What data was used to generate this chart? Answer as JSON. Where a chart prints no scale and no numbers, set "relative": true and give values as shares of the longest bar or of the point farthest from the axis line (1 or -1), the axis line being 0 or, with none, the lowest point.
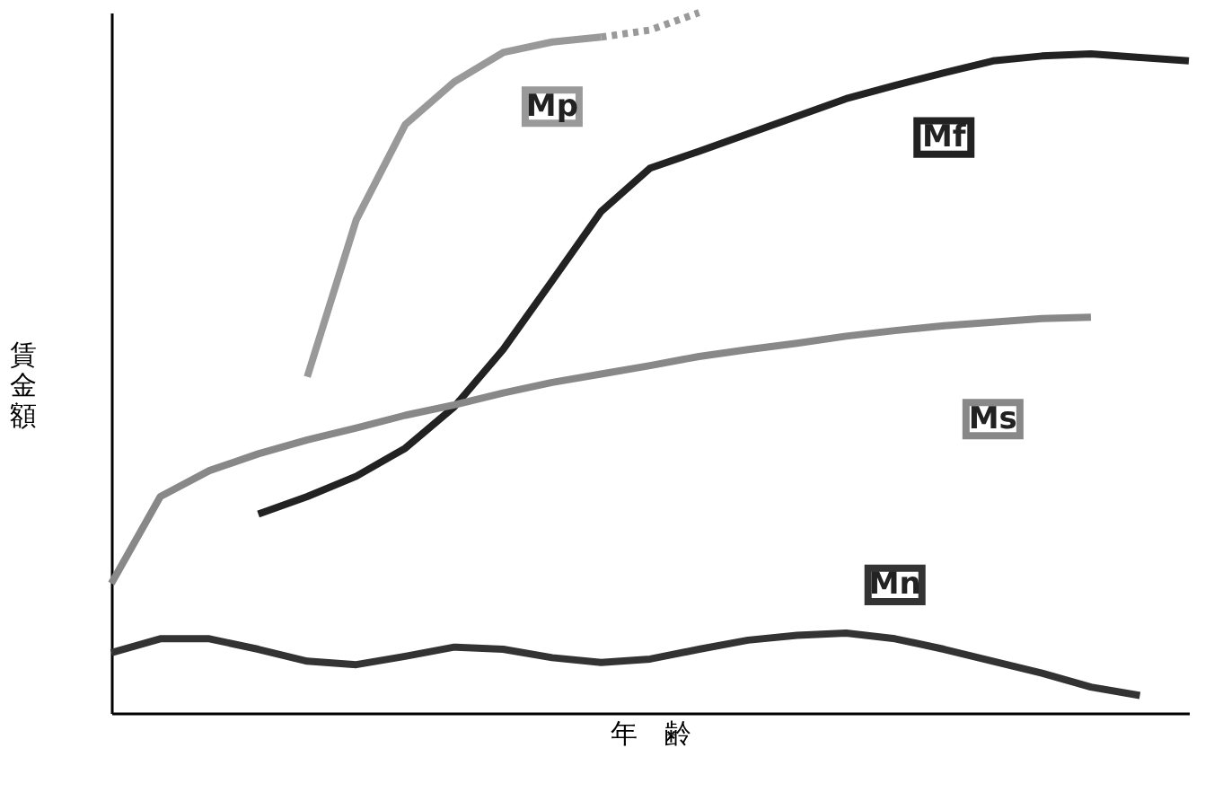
{
  "chart_data": {
    "type": "line",
    "relative": true,
    "xlabel": "年　齢",
    "ylabel": "賃金額",
    "tick_labels": false,
    "categories": [
      null,
      null,
      null,
      null,
      null,
      null,
      null,
      null,
      null,
      null,
      null,
      null,
      null,
      null,
      null,
      null,
      null,
      null,
      null,
      null,
      null,
      null,
      null
    ],
    "series": [
      {
        "name": "Mp",
        "color": "#999999",
        "line_style": "solid",
        "values": [
          null,
          null,
          null,
          null,
          0.48,
          0.704,
          0.84,
          0.901,
          0.943,
          0.958,
          0.965,
          null,
          null,
          null,
          null,
          null,
          null,
          null,
          null,
          null,
          null,
          null,
          null
        ]
      },
      {
        "color": "#999999",
        "line_style": "dotted",
        "values": [
          null,
          null,
          null,
          null,
          null,
          null,
          null,
          null,
          null,
          null,
          0.965,
          0.975,
          1,
          null,
          null,
          null,
          null,
          null,
          null,
          null,
          null,
          null,
          null
        ]
      },
      {
        "name": "Mf",
        "color": "#222222",
        "line_style": "solid",
        "values": [
          null,
          null,
          null,
          0.284,
          0.309,
          0.338,
          0.378,
          0.437,
          0.519,
          0.617,
          0.716,
          0.778,
          0.802,
          0.827,
          0.852,
          0.877,
          0.896,
          0.914,
          0.931,
          0.938,
          0.941,
          0.936,
          0.931
        ]
      },
      {
        "name": "Ms",
        "color": "#888888",
        "line_style": "solid",
        "values": [
          0.185,
          0.309,
          0.346,
          0.37,
          0.39,
          0.407,
          0.425,
          0.44,
          0.457,
          0.472,
          0.484,
          0.496,
          0.509,
          0.519,
          0.528,
          0.538,
          0.546,
          0.553,
          0.558,
          0.563,
          0.565,
          null,
          null
        ]
      },
      {
        "name": "Mn",
        "color": "#333333",
        "line_style": "solid",
        "values": [
          0.086,
          0.106,
          0.106,
          0.091,
          0.074,
          0.069,
          0.081,
          0.094,
          0.091,
          0.079,
          0.072,
          0.077,
          0.091,
          0.104,
          0.111,
          0.114,
          0.106,
          0.091,
          0.074,
          0.057,
          0.037,
          0.025,
          null
        ]
      }
    ]
  }
}
